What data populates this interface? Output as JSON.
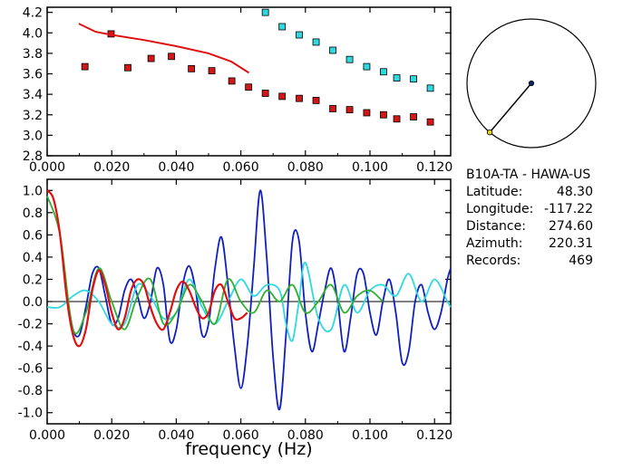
{
  "station": {
    "title": "B10A-TA  - HAWA-US",
    "fields": [
      {
        "label": "Latitude:",
        "value": "48.30"
      },
      {
        "label": "Longitude:",
        "value": "-117.22"
      },
      {
        "label": "Distance:",
        "value": "274.60"
      },
      {
        "label": "Azimuth:",
        "value": "220.31"
      },
      {
        "label": "Records:",
        "value": "469"
      }
    ]
  },
  "colors": {
    "red": "#e01010",
    "red_fill": "#d01818",
    "cyan": "#30d8e0",
    "blue": "#1020c0",
    "green": "#30b030",
    "dark_blue": "#102060",
    "yellow": "#f0d020"
  },
  "chart_data": [
    {
      "type": "scatter",
      "xlim": [
        0.0,
        0.125
      ],
      "ylim": [
        2.8,
        4.25
      ],
      "xticks": [
        "0.000",
        "0.020",
        "0.040",
        "0.060",
        "0.080",
        "0.100",
        "0.120"
      ],
      "yticks": [
        "2.8",
        "3.0",
        "3.2",
        "3.4",
        "3.6",
        "3.8",
        "4.0",
        "4.2"
      ],
      "series": [
        {
          "color": "red",
          "x": [
            0.0117,
            0.0198,
            0.025,
            0.0322,
            0.0385,
            0.0447,
            0.051,
            0.0572,
            0.0624,
            0.0676,
            0.0728,
            0.0781,
            0.0833,
            0.0885,
            0.0937,
            0.099,
            0.1042,
            0.1083,
            0.1135,
            0.1187
          ],
          "y": [
            3.67,
            3.99,
            3.66,
            3.75,
            3.77,
            3.65,
            3.63,
            3.53,
            3.47,
            3.41,
            3.38,
            3.36,
            3.34,
            3.26,
            3.25,
            3.22,
            3.2,
            3.16,
            3.18,
            3.13
          ]
        },
        {
          "color": "cyan",
          "x": [
            0.0676,
            0.0728,
            0.0781,
            0.0833,
            0.0885,
            0.0937,
            0.099,
            0.1042,
            0.1083,
            0.1135,
            0.1187
          ],
          "y": [
            4.2,
            4.06,
            3.98,
            3.91,
            3.83,
            3.74,
            3.67,
            3.62,
            3.56,
            3.55,
            3.46
          ]
        },
        {
          "color": "red",
          "type": "line",
          "x": [
            0.0098,
            0.015,
            0.02,
            0.03,
            0.04,
            0.05,
            0.057,
            0.0625
          ],
          "y": [
            4.09,
            4.01,
            3.98,
            3.93,
            3.87,
            3.8,
            3.72,
            3.61
          ]
        }
      ]
    },
    {
      "type": "line",
      "xlabel": "frequency (Hz)",
      "xlim": [
        0.0,
        0.125
      ],
      "ylim": [
        -1.1,
        1.1
      ],
      "xticks": [
        "0.000",
        "0.020",
        "0.040",
        "0.060",
        "0.080",
        "0.100",
        "0.120"
      ],
      "yticks": [
        "-1.0",
        "-0.8",
        "-0.6",
        "-0.4",
        "-0.2",
        "0.0",
        "0.2",
        "0.4",
        "0.6",
        "0.8",
        "1.0"
      ],
      "series": [
        {
          "color": "blue",
          "x": [
            0.0,
            0.002,
            0.004,
            0.006,
            0.008,
            0.01,
            0.012,
            0.014,
            0.016,
            0.018,
            0.02,
            0.022,
            0.024,
            0.026,
            0.028,
            0.03,
            0.032,
            0.034,
            0.036,
            0.038,
            0.04,
            0.042,
            0.044,
            0.046,
            0.048,
            0.05,
            0.052,
            0.054,
            0.056,
            0.058,
            0.06,
            0.062,
            0.064,
            0.066,
            0.068,
            0.07,
            0.072,
            0.074,
            0.076,
            0.078,
            0.08,
            0.082,
            0.084,
            0.086,
            0.088,
            0.09,
            0.092,
            0.094,
            0.096,
            0.098,
            0.1,
            0.102,
            0.104,
            0.106,
            0.108,
            0.11,
            0.112,
            0.114,
            0.116,
            0.118,
            0.12,
            0.122,
            0.124,
            0.125
          ],
          "y": [
            1.0,
            0.92,
            0.6,
            0.1,
            -0.25,
            -0.3,
            -0.05,
            0.25,
            0.3,
            0.05,
            -0.2,
            -0.15,
            0.1,
            0.2,
            0.05,
            -0.15,
            0.0,
            0.3,
            0.15,
            -0.35,
            -0.25,
            0.15,
            0.32,
            0.1,
            -0.3,
            -0.2,
            0.3,
            0.58,
            0.15,
            -0.4,
            -0.78,
            -0.4,
            0.3,
            1.0,
            0.4,
            -0.5,
            -0.97,
            -0.3,
            0.55,
            0.55,
            -0.1,
            -0.45,
            -0.2,
            0.1,
            0.3,
            0.0,
            -0.45,
            -0.15,
            0.25,
            0.25,
            -0.1,
            -0.3,
            0.0,
            0.2,
            -0.1,
            -0.55,
            -0.45,
            0.0,
            0.15,
            -0.1,
            -0.25,
            -0.1,
            0.2,
            0.3
          ]
        },
        {
          "color": "cyan",
          "x": [
            0.0,
            0.004,
            0.008,
            0.012,
            0.016,
            0.02,
            0.024,
            0.028,
            0.032,
            0.036,
            0.04,
            0.044,
            0.048,
            0.052,
            0.056,
            0.06,
            0.064,
            0.068,
            0.072,
            0.074,
            0.076,
            0.078,
            0.08,
            0.084,
            0.088,
            0.092,
            0.096,
            0.1,
            0.104,
            0.108,
            0.112,
            0.116,
            0.12,
            0.124,
            0.125
          ],
          "y": [
            -0.05,
            -0.05,
            0.05,
            0.1,
            0.0,
            -0.2,
            -0.2,
            0.15,
            0.05,
            -0.15,
            -0.1,
            0.2,
            -0.05,
            -0.2,
            0.0,
            0.2,
            0.05,
            0.15,
            0.1,
            -0.2,
            -0.35,
            0.0,
            0.35,
            -0.15,
            -0.25,
            0.15,
            -0.1,
            0.1,
            0.15,
            0.05,
            0.25,
            0.0,
            0.2,
            0.0,
            -0.05
          ]
        },
        {
          "color": "green",
          "x": [
            0.0,
            0.004,
            0.008,
            0.012,
            0.016,
            0.02,
            0.024,
            0.028,
            0.032,
            0.036,
            0.04,
            0.044,
            0.048,
            0.052,
            0.056,
            0.06,
            0.064,
            0.068,
            0.072,
            0.076,
            0.08,
            0.084,
            0.088,
            0.092,
            0.096,
            0.1,
            0.104
          ],
          "y": [
            0.95,
            0.6,
            -0.25,
            -0.1,
            0.3,
            0.0,
            -0.25,
            0.05,
            0.2,
            -0.2,
            -0.1,
            0.15,
            0.0,
            -0.2,
            0.2,
            0.0,
            -0.1,
            0.1,
            0.0,
            0.15,
            -0.1,
            0.0,
            0.15,
            -0.1,
            0.05,
            0.1,
            0.0
          ]
        },
        {
          "color": "red",
          "x": [
            0.0,
            0.002,
            0.004,
            0.006,
            0.008,
            0.01,
            0.012,
            0.014,
            0.016,
            0.018,
            0.02,
            0.022,
            0.024,
            0.026,
            0.028,
            0.03,
            0.032,
            0.034,
            0.036,
            0.038,
            0.04,
            0.042,
            0.044,
            0.046,
            0.048,
            0.05,
            0.052,
            0.054,
            0.056,
            0.058,
            0.06,
            0.062
          ],
          "y": [
            1.0,
            0.92,
            0.6,
            0.05,
            -0.3,
            -0.4,
            -0.25,
            0.1,
            0.28,
            0.15,
            -0.1,
            -0.25,
            -0.15,
            0.1,
            0.2,
            0.15,
            -0.05,
            -0.2,
            -0.25,
            -0.1,
            0.1,
            0.18,
            0.1,
            -0.05,
            -0.15,
            -0.1,
            0.1,
            0.15,
            0.0,
            -0.15,
            -0.15,
            -0.1
          ]
        }
      ]
    },
    {
      "type": "polar",
      "north_up": true,
      "azimuth_deg": 220.31,
      "line_color": "dark_blue",
      "station_color": "yellow"
    }
  ]
}
